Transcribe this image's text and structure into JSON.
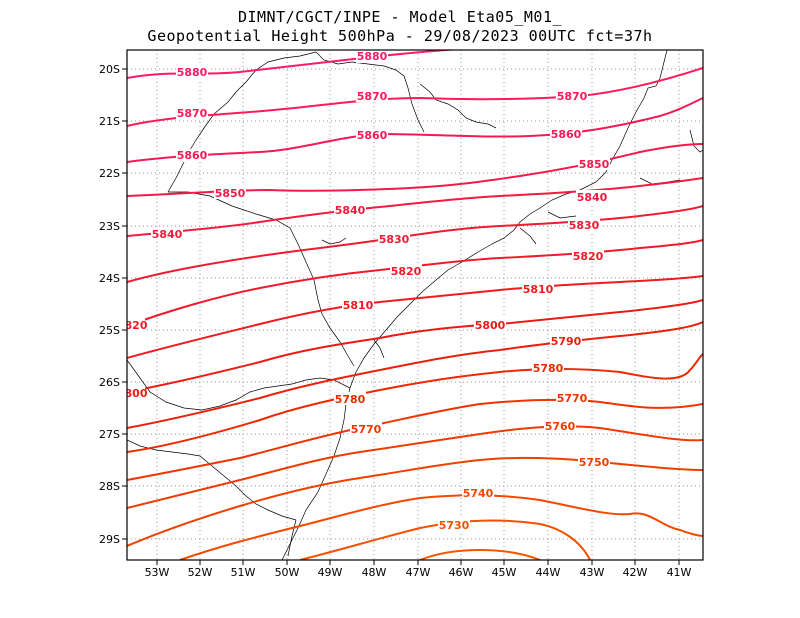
{
  "title_line1": "DIMNT/CGCT/INPE -  Model Eta05_M01_",
  "title_line2": "Geopotential Height 500hPa -  29/08/2023 00UTC fct=37h",
  "lat_labels": [
    "20S",
    "21S",
    "22S",
    "23S",
    "24S",
    "25S",
    "26S",
    "27S",
    "28S",
    "29S"
  ],
  "lon_labels": [
    "53W",
    "52W",
    "51W",
    "50W",
    "49W",
    "48W",
    "47W",
    "46W",
    "45W",
    "44W",
    "43W",
    "42W",
    "41W"
  ],
  "contour_labels": [
    {
      "text": "5880",
      "level": 5880
    },
    {
      "text": "5880",
      "level": 5880
    },
    {
      "text": "5870",
      "level": 5870
    },
    {
      "text": "5870",
      "level": 5870
    },
    {
      "text": "5870",
      "level": 5870
    },
    {
      "text": "5860",
      "level": 5860
    },
    {
      "text": "5860",
      "level": 5860
    },
    {
      "text": "5860",
      "level": 5860
    },
    {
      "text": "5850",
      "level": 5850
    },
    {
      "text": "5850",
      "level": 5850
    },
    {
      "text": "5840",
      "level": 5840
    },
    {
      "text": "5840",
      "level": 5840
    },
    {
      "text": "5840",
      "level": 5840
    },
    {
      "text": "5830",
      "level": 5830
    },
    {
      "text": "5830",
      "level": 5830
    },
    {
      "text": "5820",
      "level": 5820
    },
    {
      "text": "5820",
      "level": 5820
    },
    {
      "text": "5810",
      "level": 5810
    },
    {
      "text": "5810",
      "level": 5810
    },
    {
      "text": "5800",
      "level": 5800
    },
    {
      "text": "5790",
      "level": 5790
    },
    {
      "text": "5780",
      "level": 5780
    },
    {
      "text": "5780",
      "level": 5780
    },
    {
      "text": "5770",
      "level": 5770
    },
    {
      "text": "5770",
      "level": 5770
    },
    {
      "text": "5760",
      "level": 5760
    },
    {
      "text": "5750",
      "level": 5750
    },
    {
      "text": "5740",
      "level": 5740
    },
    {
      "text": "5730",
      "level": 5730
    },
    {
      "text": "820",
      "level": 5820
    },
    {
      "text": "800",
      "level": 5800
    }
  ],
  "colors": {
    "c5880": "#ff1a66",
    "c5870": "#ff1a5c",
    "c5860": "#f51a55",
    "c5850": "#f5194a",
    "c5840": "#f51a40",
    "c5830": "#f01a33",
    "c5820": "#f01a2a",
    "c5810": "#f01a20",
    "c5800": "#eb1a14",
    "c5790": "#eb200a",
    "c5780": "#eb2a00",
    "c5770": "#f03300",
    "c5760": "#f03a00",
    "c5750": "#f04000",
    "c5740": "#f54800",
    "c5730": "#f55000",
    "c5720": "#f55800"
  }
}
